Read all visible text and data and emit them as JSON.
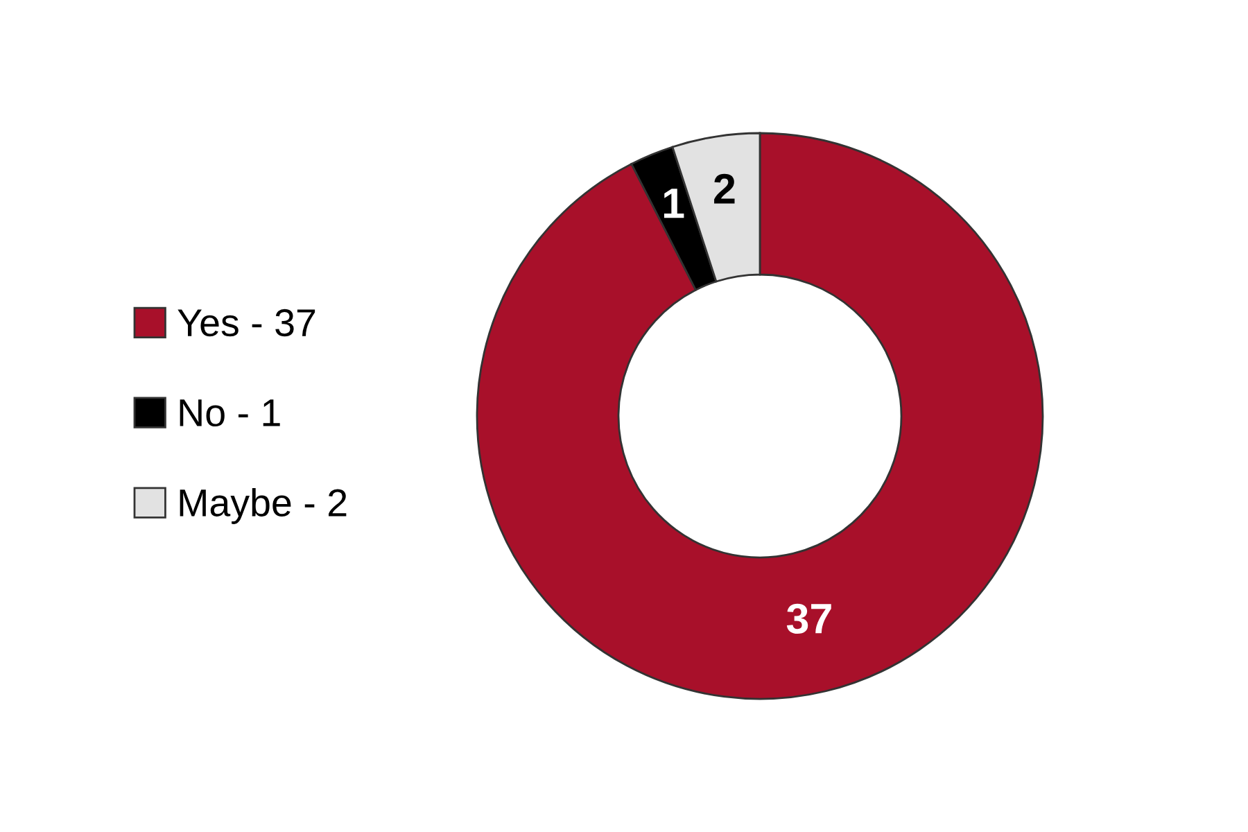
{
  "chart_data": {
    "type": "donut",
    "categories": [
      "Yes - 37",
      "No - 1",
      "Maybe - 2"
    ],
    "values": [
      37,
      1,
      2
    ],
    "colors": [
      "#a8102a",
      "#000000",
      "#e2e2e2"
    ],
    "data_labels": true,
    "legend": "left"
  }
}
